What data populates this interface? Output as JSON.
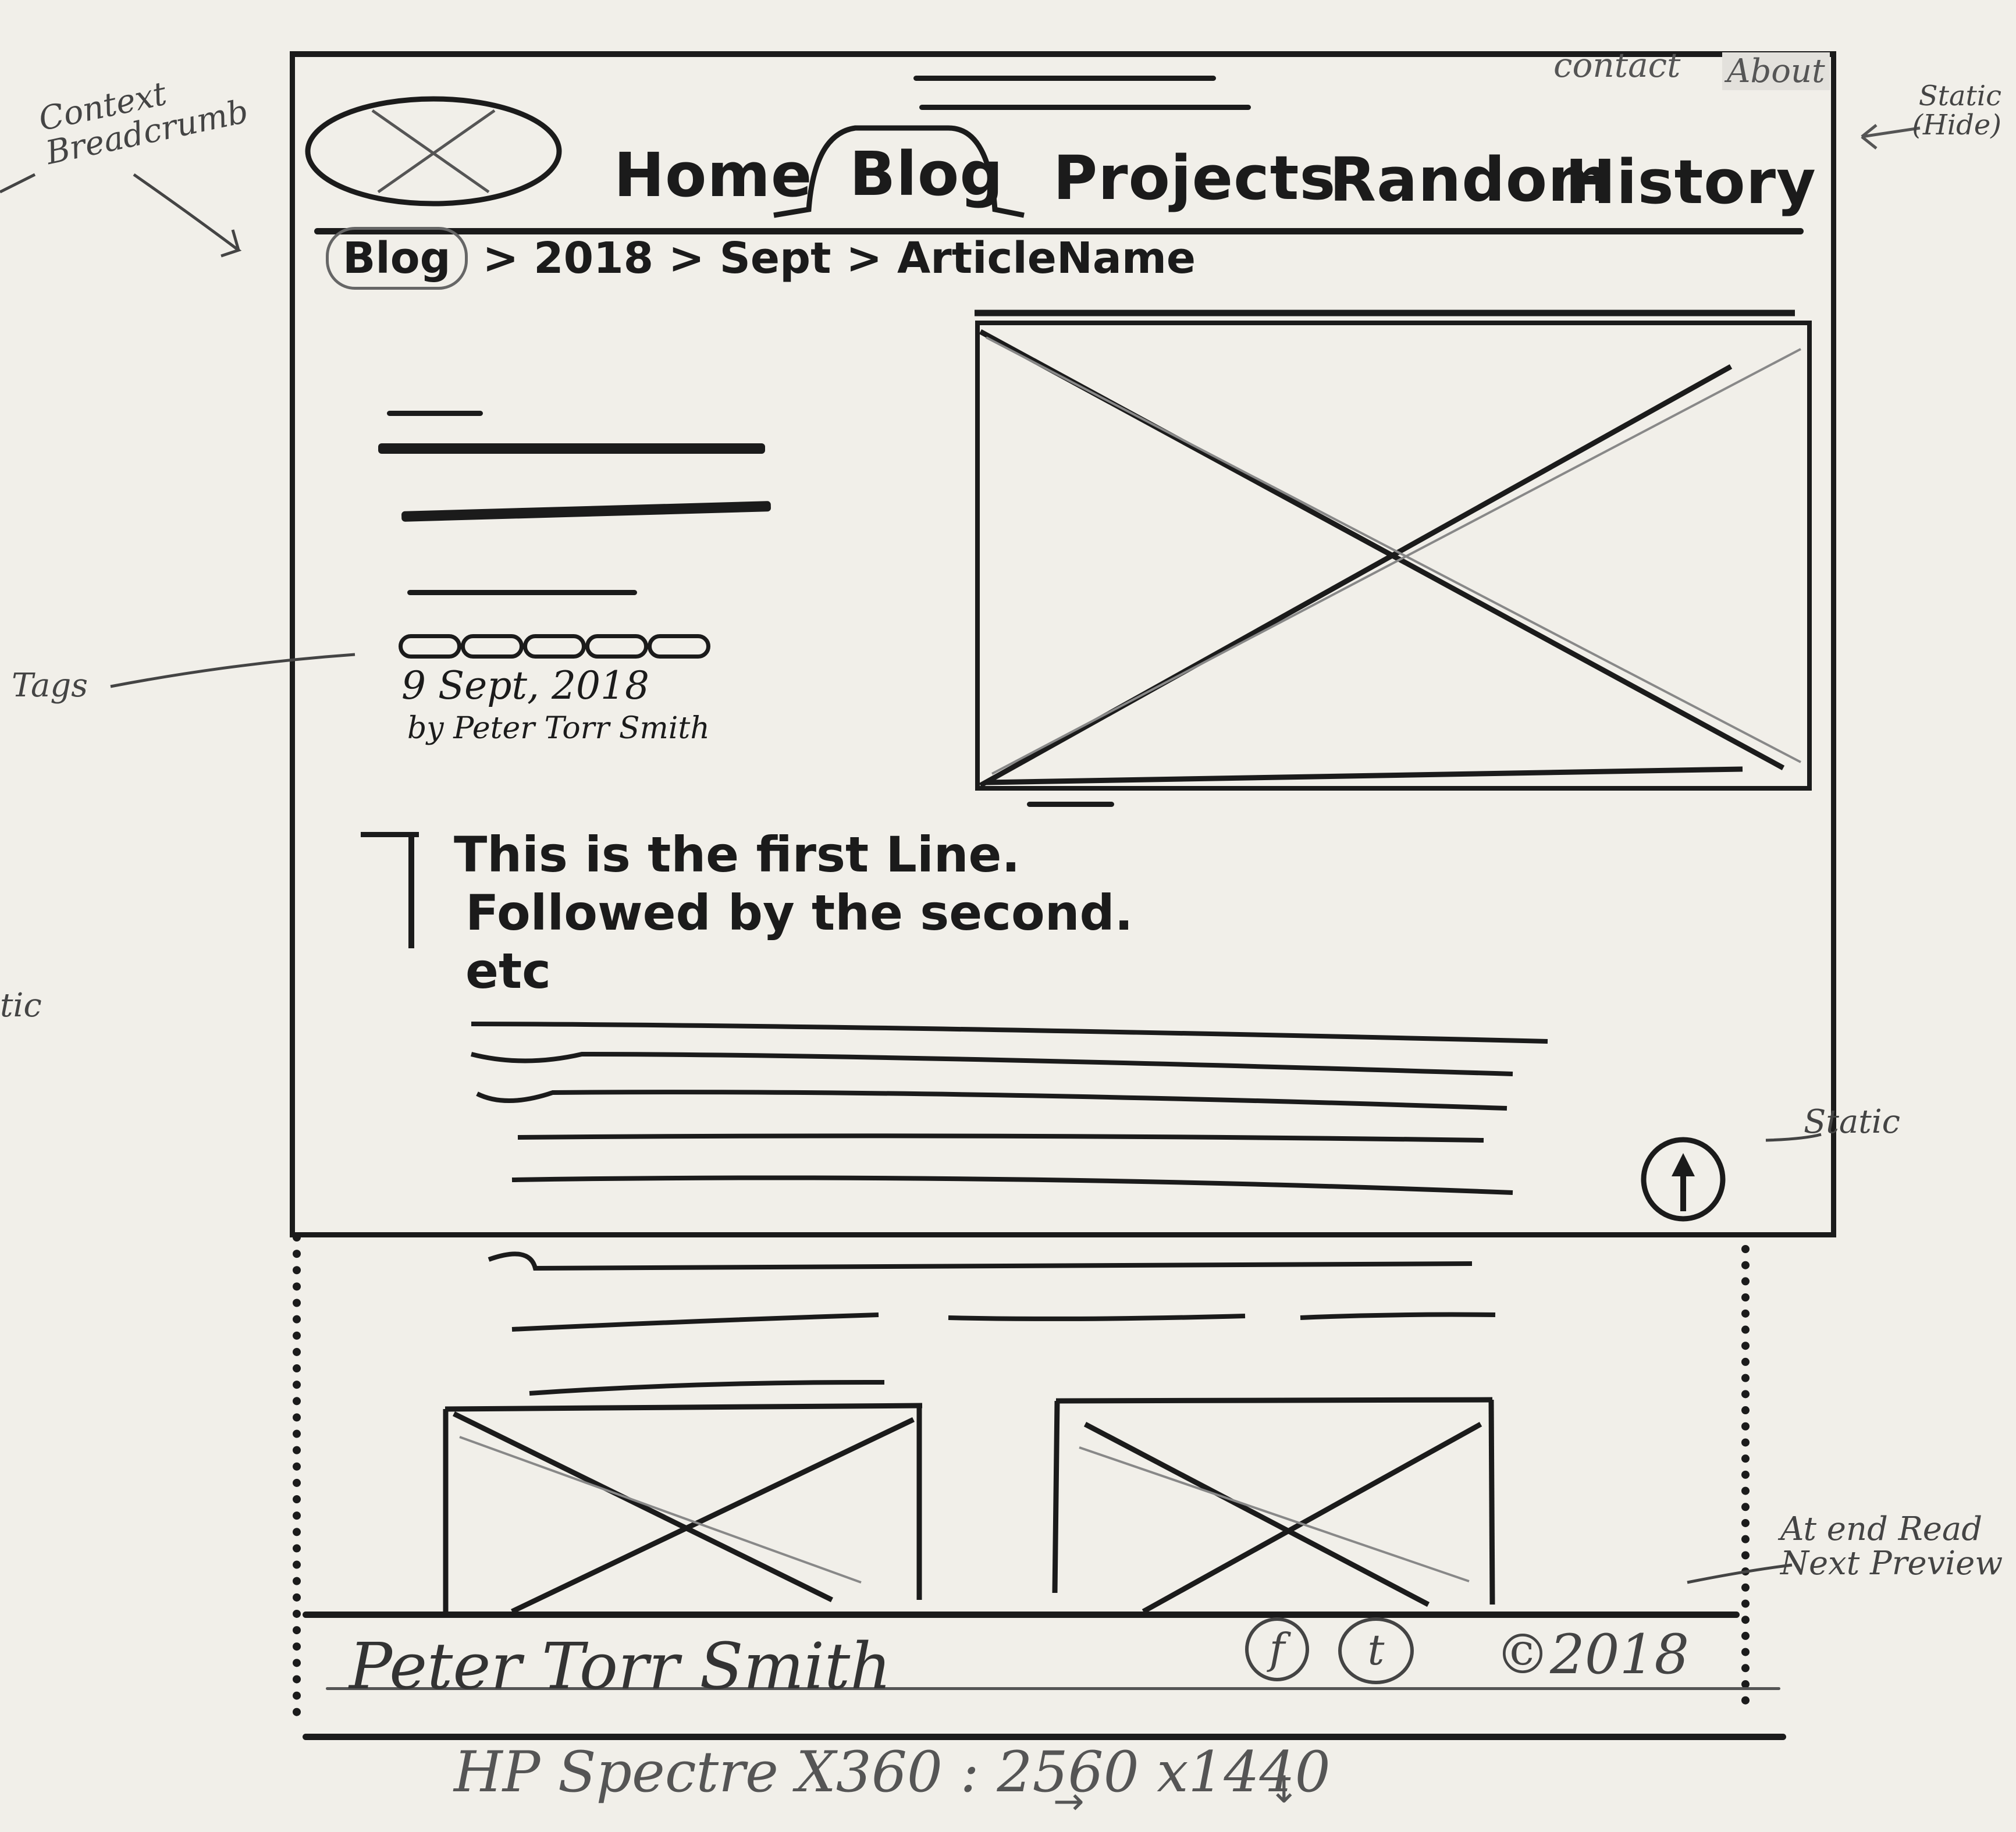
{
  "header": {
    "top_links": {
      "contact": "contact",
      "about": "About"
    },
    "nav": [
      {
        "label": "Home",
        "active": false
      },
      {
        "label": "Blog",
        "active": true
      },
      {
        "label": "Projects",
        "active": false
      },
      {
        "label": "Random",
        "active": false
      },
      {
        "label": "History",
        "active": false
      }
    ]
  },
  "breadcrumb": [
    "Blog",
    "2018",
    "Sept",
    "ArticleName"
  ],
  "breadcrumb_separator": ">",
  "article": {
    "date": "9 Sept, 2018",
    "author": "by Peter Torr Smith",
    "intro_lines": [
      "This is the first Line.",
      "Followed by the second.",
      "etc"
    ]
  },
  "footer": {
    "name": "Peter Torr Smith",
    "social": [
      "f",
      "t"
    ],
    "copyright": "©2018"
  },
  "device_note": "HP Spectre X360 : 2560 x1440",
  "annotations": {
    "context_breadcrumb": "Context Breadcrumb",
    "static_hide": "Static (Hide)",
    "tags": "Tags",
    "static_partial": "tic",
    "static_button": "Static",
    "at_end": "At end Read Next Preview"
  },
  "icons": {
    "logo": "logo-placeholder-icon",
    "scroll_top": "arrow-up-icon",
    "facebook": "facebook-icon",
    "twitter": "twitter-icon"
  }
}
